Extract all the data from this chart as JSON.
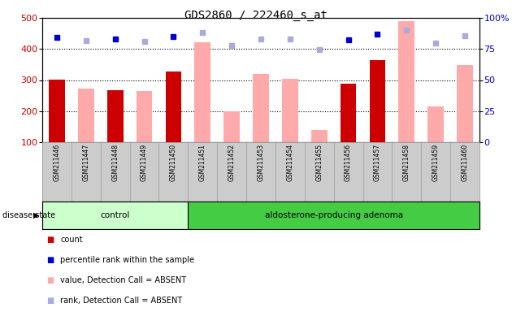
{
  "title": "GDS2860 / 222460_s_at",
  "samples": [
    "GSM211446",
    "GSM211447",
    "GSM211448",
    "GSM211449",
    "GSM211450",
    "GSM211451",
    "GSM211452",
    "GSM211453",
    "GSM211454",
    "GSM211455",
    "GSM211456",
    "GSM211457",
    "GSM211458",
    "GSM211459",
    "GSM211460"
  ],
  "count_values": [
    302,
    null,
    268,
    null,
    328,
    null,
    null,
    null,
    null,
    null,
    288,
    365,
    null,
    null,
    null
  ],
  "value_absent": [
    null,
    272,
    null,
    265,
    null,
    422,
    200,
    320,
    305,
    138,
    null,
    null,
    490,
    215,
    348
  ],
  "percentile_present": [
    436,
    null,
    432,
    null,
    440,
    null,
    null,
    null,
    null,
    null,
    430,
    448,
    null,
    null,
    null
  ],
  "percentile_absent": [
    null,
    428,
    null,
    425,
    null,
    453,
    410,
    432,
    432,
    398,
    null,
    null,
    460,
    420,
    443
  ],
  "control_n": 5,
  "adenoma_n": 10,
  "ylim_left": [
    100,
    500
  ],
  "ylim_right": [
    0,
    100
  ],
  "yticks_left": [
    100,
    200,
    300,
    400,
    500
  ],
  "yticks_right": [
    0,
    25,
    50,
    75,
    100
  ],
  "bar_color_count": "#cc0000",
  "bar_color_absent": "#ffaaaa",
  "dot_color_present": "#0000cc",
  "dot_color_absent": "#aaaadd",
  "control_bg": "#ccffcc",
  "adenoma_bg": "#44cc44",
  "plot_bg": "#ffffff",
  "label_bg": "#cccccc",
  "legend_items": [
    {
      "color": "#cc0000",
      "label": "count"
    },
    {
      "color": "#0000cc",
      "label": "percentile rank within the sample"
    },
    {
      "color": "#ffaaaa",
      "label": "value, Detection Call = ABSENT"
    },
    {
      "color": "#aaaadd",
      "label": "rank, Detection Call = ABSENT"
    }
  ]
}
